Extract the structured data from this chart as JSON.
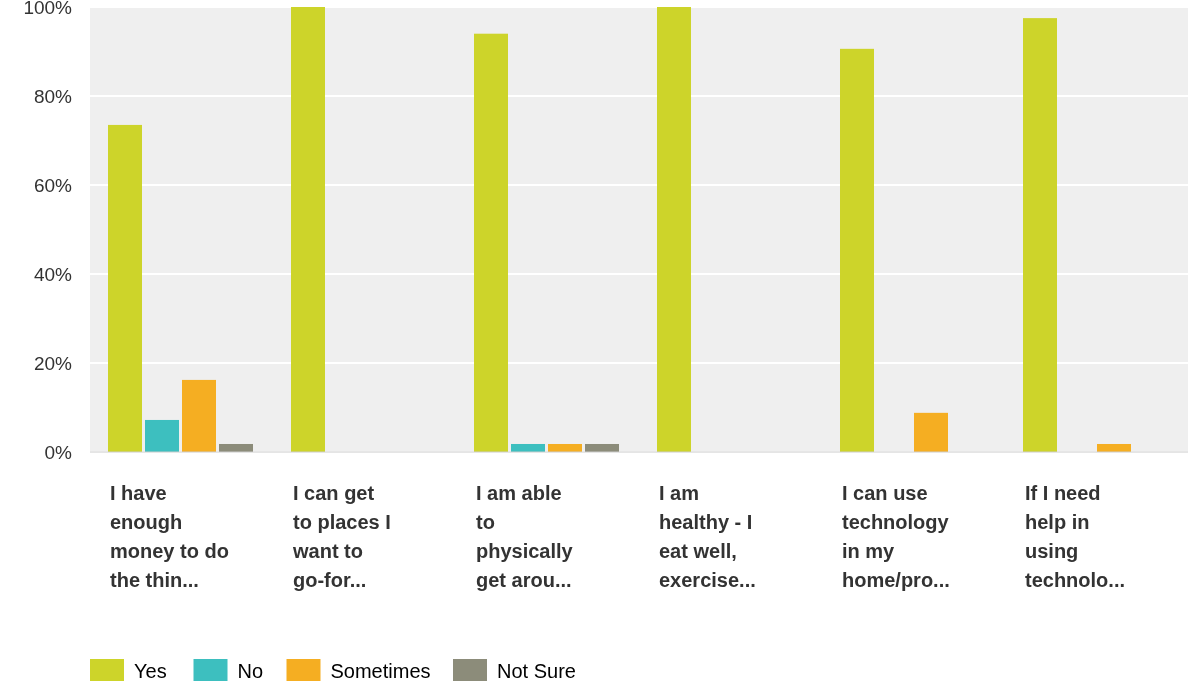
{
  "chart_data": {
    "type": "bar",
    "categories": [
      "I have enough money to do the thin...",
      "I can get to places I want to go-for...",
      "I am able to physically get arou...",
      "I am healthy - I eat well, exercise...",
      "I can use technology in my home/pro...",
      "If I need help in using technolo..."
    ],
    "series": [
      {
        "name": "Yes",
        "color": "#cdd42a",
        "values": [
          73.5,
          100,
          94,
          100,
          90.6,
          97.5
        ]
      },
      {
        "name": "No",
        "color": "#3dbfbf",
        "values": [
          7.2,
          0,
          1.8,
          0,
          0,
          0
        ]
      },
      {
        "name": "Sometimes",
        "color": "#f5ae22",
        "values": [
          16.2,
          0,
          1.8,
          0,
          8.8,
          1.8
        ]
      },
      {
        "name": "Not Sure",
        "color": "#8c8c7a",
        "values": [
          1.8,
          0,
          1.8,
          0,
          0,
          0
        ]
      }
    ],
    "ylim": [
      0,
      100
    ],
    "yticks": [
      {
        "value": 0,
        "label": "0%"
      },
      {
        "value": 20,
        "label": "20%"
      },
      {
        "value": 40,
        "label": "40%"
      },
      {
        "value": 60,
        "label": "60%"
      },
      {
        "value": 80,
        "label": "80%"
      },
      {
        "value": 100,
        "label": "100%"
      }
    ],
    "grid": "y",
    "legend": "bottom"
  }
}
